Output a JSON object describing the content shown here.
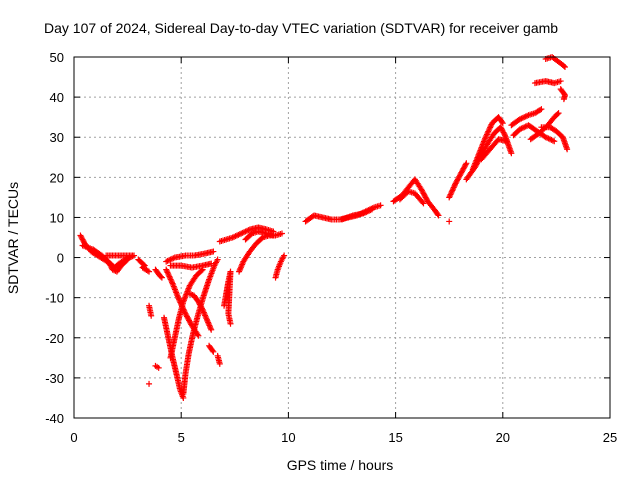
{
  "chart_data": {
    "type": "scatter",
    "title": "Day 107 of 2024, Sidereal Day-to-day VTEC variation (SDTVAR) for receiver gamb",
    "xlabel": "GPS time / hours",
    "ylabel": "SDTVAR / TECUs",
    "xlim": [
      0,
      25
    ],
    "ylim": [
      -40,
      50
    ],
    "xticks": [
      "0",
      "5",
      "10",
      "15",
      "20",
      "25"
    ],
    "yticks": [
      "-40",
      "-30",
      "-20",
      "-10",
      "0",
      "10",
      "20",
      "30",
      "40",
      "50"
    ],
    "grid": true,
    "marker": "+",
    "color": "#ff0000",
    "tracks": [
      [
        [
          0.3,
          5.5
        ],
        [
          0.5,
          3.5
        ],
        [
          0.8,
          1.5
        ],
        [
          1.1,
          0.5
        ],
        [
          1.4,
          -0.5
        ],
        [
          1.7,
          -1.5
        ],
        [
          1.9,
          -2.5
        ],
        [
          2.1,
          -1.5
        ],
        [
          2.4,
          -0.5
        ],
        [
          2.8,
          0.5
        ],
        [
          2.3,
          0.5
        ],
        [
          1.5,
          0.5
        ]
      ],
      [
        [
          0.4,
          3.0
        ],
        [
          0.9,
          2.0
        ],
        [
          1.3,
          0.5
        ],
        [
          1.6,
          -1.0
        ],
        [
          1.8,
          -3.0
        ],
        [
          2.0,
          -3.5
        ],
        [
          2.2,
          -2.0
        ],
        [
          2.5,
          -0.5
        ]
      ],
      [
        [
          3.0,
          -0.5
        ],
        [
          3.3,
          -2.0
        ],
        [
          3.2,
          -2.5
        ],
        [
          3.5,
          -3.5
        ]
      ],
      [
        [
          3.5,
          -12.0
        ],
        [
          3.6,
          -14.5
        ]
      ],
      [
        [
          3.8,
          -3.0
        ],
        [
          4.0,
          -4.5
        ],
        [
          4.1,
          -5.0
        ]
      ],
      [
        [
          3.8,
          -27.0
        ],
        [
          3.95,
          -27.5
        ]
      ],
      [
        [
          3.5,
          -31.5
        ]
      ],
      [
        [
          4.3,
          -3.0
        ],
        [
          4.6,
          -6.5
        ],
        [
          4.9,
          -10.5
        ],
        [
          5.2,
          -14.0
        ],
        [
          5.5,
          -17.0
        ],
        [
          5.8,
          -19.5
        ]
      ],
      [
        [
          4.2,
          -15.0
        ],
        [
          4.4,
          -20.0
        ],
        [
          4.6,
          -25.0
        ],
        [
          4.8,
          -29.5
        ],
        [
          4.95,
          -33.0
        ],
        [
          5.1,
          -35.0
        ]
      ],
      [
        [
          5.1,
          -34.0
        ],
        [
          5.2,
          -29.0
        ],
        [
          5.35,
          -24.0
        ],
        [
          5.55,
          -19.0
        ],
        [
          5.8,
          -14.0
        ],
        [
          6.05,
          -9.5
        ],
        [
          6.3,
          -5.5
        ],
        [
          6.55,
          -2.0
        ],
        [
          6.7,
          -0.5
        ]
      ],
      [
        [
          4.5,
          -25.0
        ],
        [
          4.7,
          -20.0
        ],
        [
          4.9,
          -15.0
        ],
        [
          5.1,
          -11.0
        ],
        [
          5.4,
          -7.0
        ],
        [
          5.7,
          -4.5
        ],
        [
          6.0,
          -3.0
        ]
      ],
      [
        [
          4.3,
          -1.0
        ],
        [
          4.7,
          0.0
        ],
        [
          5.2,
          0.5
        ],
        [
          5.6,
          0.5
        ],
        [
          6.1,
          1.0
        ],
        [
          6.5,
          1.5
        ]
      ],
      [
        [
          4.5,
          -2.0
        ],
        [
          5.0,
          -2.0
        ],
        [
          5.5,
          -2.5
        ],
        [
          6.0,
          -2.0
        ],
        [
          6.4,
          -1.5
        ]
      ],
      [
        [
          5.4,
          -9.0
        ],
        [
          5.6,
          -9.5
        ],
        [
          5.8,
          -11.0
        ],
        [
          6.0,
          -13.0
        ],
        [
          6.2,
          -15.5
        ],
        [
          6.4,
          -18.0
        ]
      ],
      [
        [
          6.3,
          -22.0
        ],
        [
          6.5,
          -23.5
        ]
      ],
      [
        [
          6.7,
          -24.5
        ],
        [
          6.8,
          -26.5
        ]
      ],
      [
        [
          7.0,
          -12.0
        ],
        [
          7.1,
          -9.0
        ],
        [
          7.2,
          -6.0
        ],
        [
          7.3,
          -3.5
        ],
        [
          7.2,
          -14.0
        ],
        [
          7.3,
          -16.5
        ]
      ],
      [
        [
          6.8,
          4.0
        ],
        [
          7.1,
          4.5
        ],
        [
          7.4,
          5.0
        ],
        [
          7.8,
          6.0
        ],
        [
          8.2,
          7.0
        ],
        [
          8.6,
          7.5
        ],
        [
          9.0,
          7.0
        ],
        [
          9.3,
          6.5
        ]
      ],
      [
        [
          7.7,
          -3.5
        ],
        [
          7.9,
          -1.0
        ],
        [
          8.2,
          1.5
        ],
        [
          8.5,
          3.5
        ],
        [
          8.8,
          5.0
        ],
        [
          9.1,
          5.5
        ],
        [
          9.4,
          5.5
        ],
        [
          9.7,
          6.0
        ]
      ],
      [
        [
          8.0,
          4.5
        ],
        [
          8.3,
          6.0
        ],
        [
          8.6,
          6.5
        ],
        [
          9.0,
          6.0
        ],
        [
          9.3,
          5.5
        ]
      ],
      [
        [
          9.4,
          -5.0
        ],
        [
          9.5,
          -3.0
        ],
        [
          9.65,
          -1.0
        ],
        [
          9.8,
          0.5
        ]
      ],
      [
        [
          10.8,
          9.0
        ],
        [
          11.2,
          10.5
        ],
        [
          11.6,
          10.0
        ],
        [
          12.0,
          9.5
        ],
        [
          12.4,
          9.5
        ],
        [
          12.8,
          10.0
        ],
        [
          13.2,
          10.5
        ],
        [
          13.6,
          11.5
        ],
        [
          14.0,
          12.5
        ],
        [
          14.3,
          13.0
        ]
      ],
      [
        [
          12.5,
          9.5
        ],
        [
          13.0,
          10.5
        ],
        [
          13.5,
          11.0
        ],
        [
          13.9,
          12.0
        ]
      ],
      [
        [
          14.9,
          14.0
        ],
        [
          15.3,
          15.5
        ],
        [
          15.6,
          17.5
        ],
        [
          15.9,
          19.5
        ],
        [
          16.2,
          17.0
        ],
        [
          16.5,
          14.0
        ],
        [
          16.8,
          12.0
        ],
        [
          17.0,
          10.5
        ]
      ],
      [
        [
          15.2,
          14.5
        ],
        [
          15.6,
          16.5
        ],
        [
          15.9,
          16.0
        ],
        [
          16.3,
          13.5
        ]
      ],
      [
        [
          17.5,
          15.0
        ],
        [
          17.8,
          18.5
        ],
        [
          18.1,
          21.5
        ],
        [
          18.3,
          23.5
        ]
      ],
      [
        [
          17.5,
          9.0
        ]
      ],
      [
        [
          18.3,
          19.5
        ],
        [
          18.7,
          22.5
        ],
        [
          19.0,
          25.5
        ],
        [
          19.3,
          28.5
        ],
        [
          19.6,
          31.0
        ],
        [
          19.9,
          32.5
        ],
        [
          20.1,
          30.5
        ],
        [
          20.3,
          27.5
        ],
        [
          20.4,
          26.0
        ]
      ],
      [
        [
          18.6,
          22.0
        ],
        [
          18.9,
          26.0
        ],
        [
          19.2,
          30.0
        ],
        [
          19.5,
          33.5
        ],
        [
          19.8,
          35.0
        ],
        [
          20.0,
          33.5
        ]
      ],
      [
        [
          19.0,
          24.5
        ],
        [
          19.4,
          27.0
        ],
        [
          19.8,
          29.5
        ],
        [
          20.2,
          29.0
        ]
      ],
      [
        [
          20.5,
          30.5
        ],
        [
          20.8,
          32.0
        ],
        [
          21.2,
          33.0
        ],
        [
          21.6,
          31.5
        ],
        [
          22.0,
          30.0
        ],
        [
          22.4,
          29.0
        ]
      ],
      [
        [
          20.4,
          33.0
        ],
        [
          20.8,
          34.5
        ],
        [
          21.2,
          35.5
        ],
        [
          21.5,
          36.0
        ],
        [
          21.8,
          37.0
        ]
      ],
      [
        [
          21.3,
          29.5
        ],
        [
          21.7,
          31.0
        ],
        [
          22.1,
          33.0
        ],
        [
          22.4,
          35.0
        ],
        [
          22.6,
          36.0
        ]
      ],
      [
        [
          21.8,
          32.5
        ],
        [
          22.2,
          32.5
        ],
        [
          22.5,
          31.5
        ],
        [
          22.8,
          30.0
        ],
        [
          23.0,
          27.0
        ]
      ],
      [
        [
          21.5,
          43.5
        ],
        [
          22.0,
          44.0
        ],
        [
          22.4,
          43.5
        ],
        [
          22.7,
          44.0
        ]
      ],
      [
        [
          22.0,
          49.5
        ],
        [
          22.3,
          50.0
        ],
        [
          22.8,
          48.0
        ],
        [
          22.9,
          47.5
        ]
      ],
      [
        [
          22.7,
          42.0
        ],
        [
          22.9,
          40.5
        ],
        [
          22.85,
          39.5
        ]
      ]
    ]
  }
}
